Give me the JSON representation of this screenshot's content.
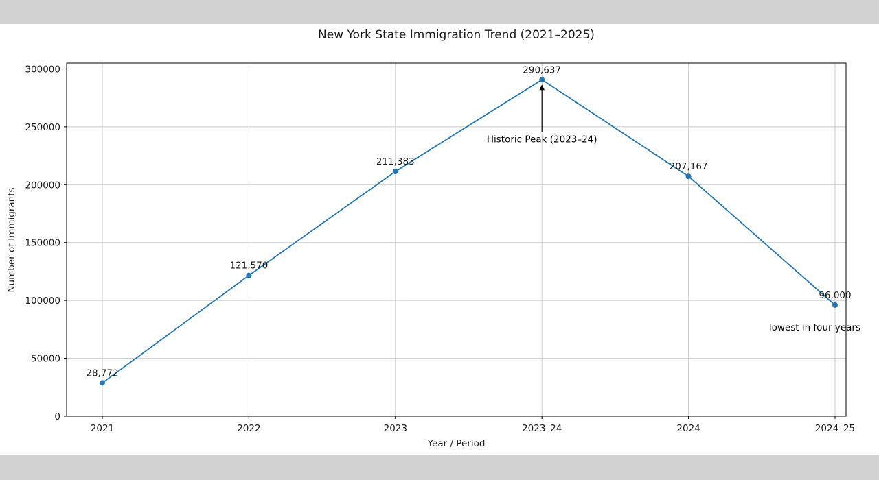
{
  "page": {
    "background": "#ffffff",
    "letterbox_color": "#d2d2d2"
  },
  "chart_data": {
    "type": "line",
    "title": "New York State Immigration Trend (2021–2025)",
    "xlabel": "Year / Period",
    "ylabel": "Number of Immigrants",
    "categories": [
      "2021",
      "2022",
      "2023",
      "2023–24",
      "2024",
      "2024–25"
    ],
    "values": [
      28772,
      121570,
      211383,
      290637,
      207167,
      96000
    ],
    "point_labels": [
      "28,772",
      "121,570",
      "211,383",
      "290,637",
      "207,167",
      "96,000"
    ],
    "ylim": [
      0,
      305000
    ],
    "yticks": [
      0,
      50000,
      100000,
      150000,
      200000,
      250000,
      300000
    ],
    "ytick_labels": [
      "0",
      "50000",
      "100000",
      "150000",
      "200000",
      "250000",
      "300000"
    ],
    "grid": true,
    "legend": "none",
    "line_color": "#1f77b4",
    "marker": "circle",
    "annotations": [
      {
        "text": "Historic Peak (2023–24)",
        "target_category": "2023–24",
        "type": "arrow-up"
      },
      {
        "text": "lowest in four years",
        "target_category": "2024–25",
        "type": "text"
      }
    ]
  }
}
